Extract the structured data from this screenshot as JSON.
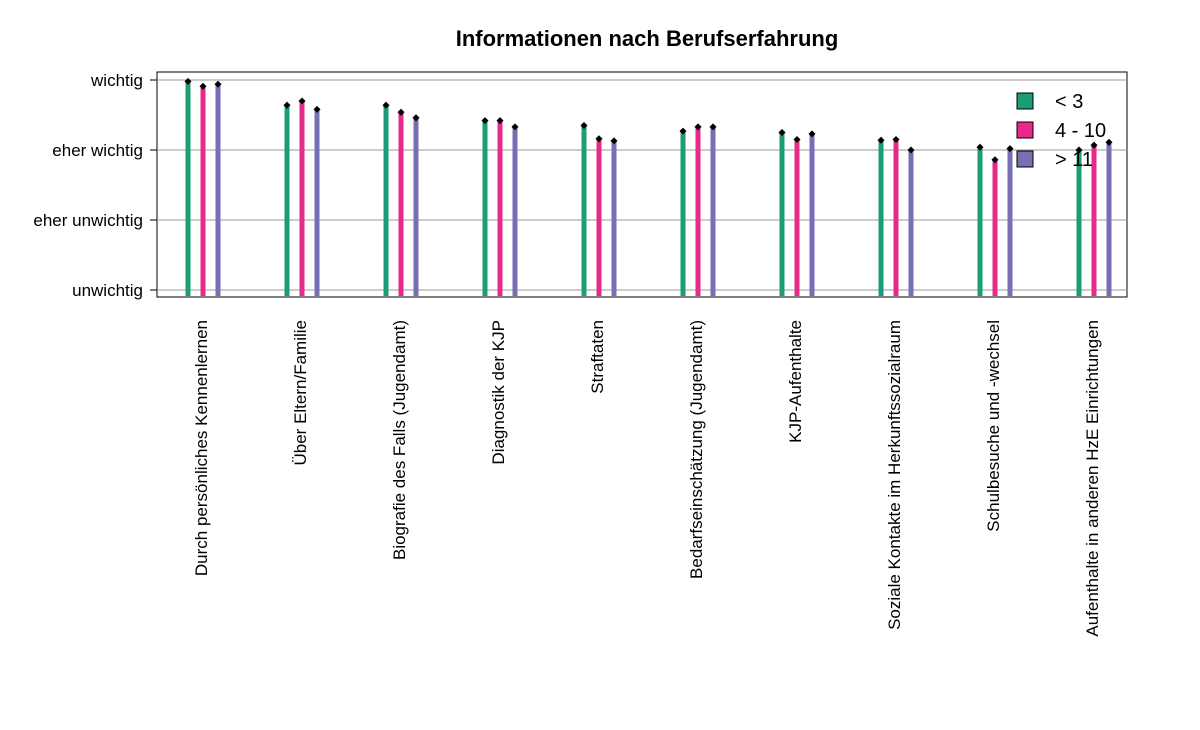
{
  "chart_data": {
    "type": "bar",
    "title": "Informationen nach Berufserfahrung",
    "xlabel": "",
    "ylabel": "",
    "ylim": [
      1,
      4
    ],
    "y_ticks": [
      {
        "value": 4,
        "label": "wichtig"
      },
      {
        "value": 3,
        "label": "eher wichtig"
      },
      {
        "value": 2,
        "label": "eher unwichtig"
      },
      {
        "value": 1,
        "label": "unwichtig"
      }
    ],
    "grid": true,
    "legend_position": "top-right",
    "categories": [
      "Durch persönliches Kennenlernen",
      "Über Eltern/Familie",
      "Biografie des Falls (Jugendamt)",
      "Diagnostik der KJP",
      "Straftaten",
      "Bedarfseinschätzung (Jugendamt)",
      "KJP-Aufenthalte",
      "Soziale Kontakte im Herkunftssozialraum",
      "Schulbesuche und -wechsel",
      "Aufenthalte in anderen HzE Einrichtungen"
    ],
    "series": [
      {
        "name": "< 3",
        "color": "#1b9e77",
        "values": [
          3.98,
          3.64,
          3.64,
          3.42,
          3.35,
          3.27,
          3.25,
          3.14,
          3.04,
          3.0
        ]
      },
      {
        "name": "4 - 10",
        "color": "#e7298a",
        "values": [
          3.91,
          3.7,
          3.54,
          3.42,
          3.16,
          3.33,
          3.15,
          3.15,
          2.86,
          3.07
        ]
      },
      {
        "name": "> 11",
        "color": "#7570b3",
        "values": [
          3.94,
          3.58,
          3.46,
          3.33,
          3.13,
          3.33,
          3.23,
          3.0,
          3.02,
          3.11
        ]
      }
    ]
  }
}
